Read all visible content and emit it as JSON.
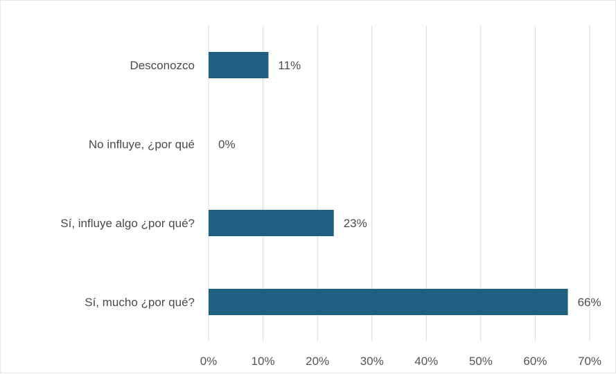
{
  "chart_data": {
    "type": "bar",
    "orientation": "horizontal",
    "categories": [
      "Desconozco",
      "No influye, ¿por qué",
      "Sí, influye algo ¿por qué?",
      "Sí, mucho ¿por qué?"
    ],
    "values": [
      11,
      0,
      23,
      66
    ],
    "data_labels": [
      "11%",
      "0%",
      "23%",
      "66%"
    ],
    "x_ticks": [
      0,
      10,
      20,
      30,
      40,
      50,
      60,
      70
    ],
    "x_tick_labels": [
      "0%",
      "10%",
      "20%",
      "30%",
      "40%",
      "50%",
      "60%",
      "70%"
    ],
    "xlim": [
      0,
      70
    ],
    "grid": "vertical",
    "legend": "none",
    "bar_color": "#1f5f82",
    "title": "",
    "xlabel": "",
    "ylabel": ""
  }
}
